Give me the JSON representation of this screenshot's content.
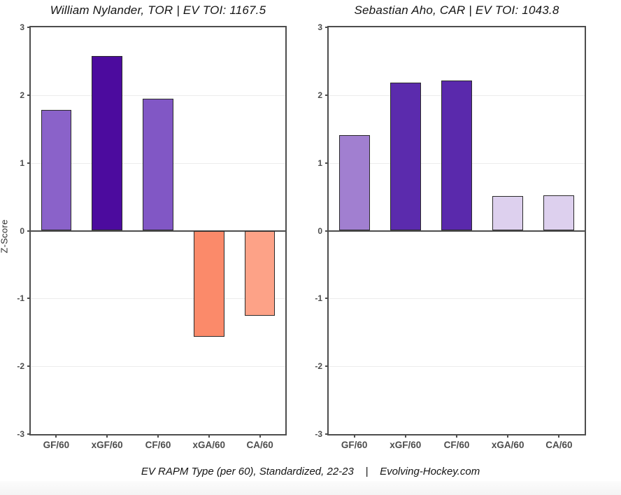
{
  "figure": {
    "ylabel": "Z-Score",
    "caption": "EV RAPM Type (per 60), Standardized, 22-23    |    Evolving-Hockey.com",
    "colors": {
      "axis": "#4d4d4d",
      "grid": "#ececec",
      "bar_outline": "#2b2b2b",
      "title_text": "#141414",
      "tick_text": "#4d4d4d"
    }
  },
  "chart_data": [
    {
      "type": "bar",
      "title": "William Nylander, TOR  |  EV TOI: 1167.5",
      "player": "William Nylander",
      "team": "TOR",
      "ev_toi": 1167.5,
      "categories": [
        "GF/60",
        "xGF/60",
        "CF/60",
        "xGA/60",
        "CA/60"
      ],
      "values": [
        1.78,
        2.58,
        1.95,
        -1.56,
        -1.25
      ],
      "bar_colors": [
        "#8a62c9",
        "#4c0b9e",
        "#8157c5",
        "#fb8a6a",
        "#fda287"
      ],
      "ylabel": "Z-Score",
      "ylim": [
        -3,
        3
      ],
      "yticks": [
        3,
        2,
        1,
        0,
        -1,
        -2,
        -3
      ],
      "grid": true,
      "legend": "none"
    },
    {
      "type": "bar",
      "title": "Sebastian Aho, CAR  |  EV TOI: 1043.8",
      "player": "Sebastian Aho",
      "team": "CAR",
      "ev_toi": 1043.8,
      "categories": [
        "GF/60",
        "xGF/60",
        "CF/60",
        "xGA/60",
        "CA/60"
      ],
      "values": [
        1.41,
        2.18,
        2.22,
        0.51,
        0.52
      ],
      "bar_colors": [
        "#a17fd0",
        "#5b2bad",
        "#5a29ac",
        "#ddd0ee",
        "#ddd0ee"
      ],
      "ylabel": "Z-Score",
      "ylim": [
        -3,
        3
      ],
      "yticks": [
        3,
        2,
        1,
        0,
        -1,
        -2,
        -3
      ],
      "grid": true,
      "legend": "none"
    }
  ]
}
